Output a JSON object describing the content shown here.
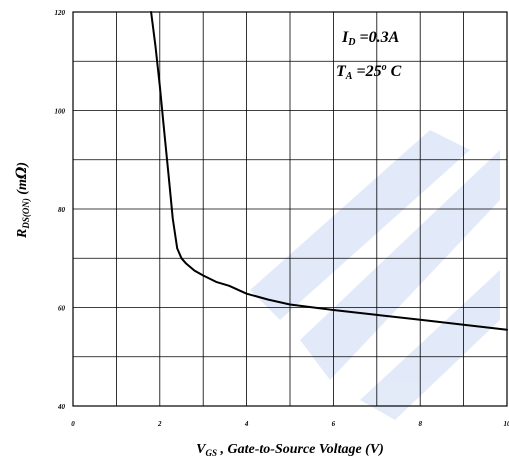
{
  "chart_data": {
    "type": "line",
    "xlim": [
      0,
      10
    ],
    "ylim": [
      40,
      120
    ],
    "x_ticks": [
      "0",
      "2",
      "4",
      "6",
      "8",
      "10"
    ],
    "y_ticks": [
      "40",
      "60",
      "80",
      "100",
      "120"
    ],
    "grid": true,
    "xlabel": {
      "v": "V",
      "sub": "GS",
      "rest": " , Gate-to-Source Voltage (V)"
    },
    "ylabel": {
      "r": "R",
      "sub": "DS(ON)",
      "rest": " (m",
      "omega": "Ω",
      "close": ")"
    },
    "annotations": [
      {
        "main": "I",
        "sub": "D",
        "rest": " =0.3A"
      },
      {
        "main": "T",
        "sub": "A",
        "rest": " =25",
        "sup": "o",
        "tail": " C"
      }
    ],
    "series": [
      {
        "x": [
          1.8,
          1.9,
          2.0,
          2.1,
          2.2,
          2.3,
          2.4,
          2.5,
          2.6,
          2.8,
          3.0,
          3.3,
          3.6,
          4.0,
          4.5,
          5.0,
          6.0,
          7.0,
          8.0,
          9.0,
          10.0
        ],
        "y": [
          120,
          113,
          105,
          96,
          87,
          78,
          72,
          70,
          69,
          67.5,
          66.5,
          65.2,
          64.4,
          62.8,
          61.6,
          60.6,
          59.5,
          58.5,
          57.5,
          56.5,
          55.5
        ]
      }
    ],
    "colors": {
      "line": "#000000",
      "grid": "#000000",
      "watermark": "#3a6fd8"
    }
  }
}
